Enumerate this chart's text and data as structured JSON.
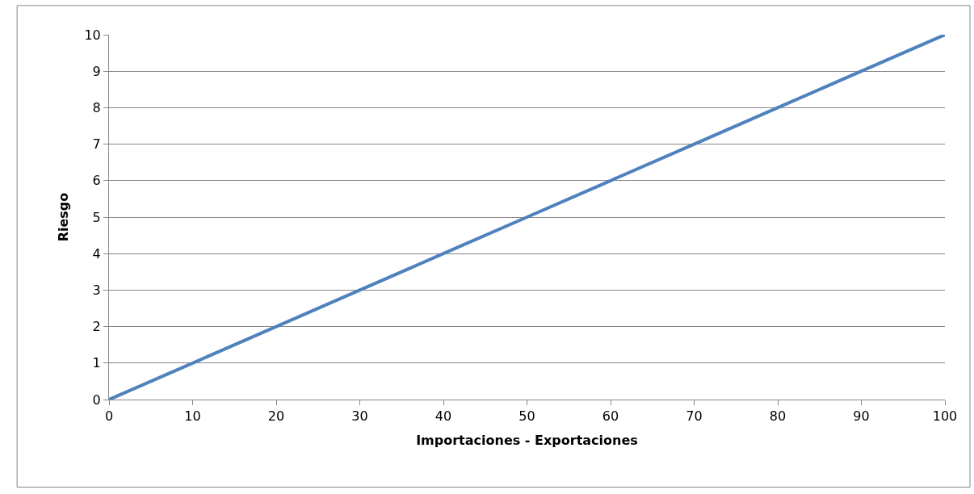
{
  "chart_data": {
    "type": "line",
    "xlabel": "Importaciones - Exportaciones",
    "ylabel": "Riesgo",
    "x": [
      0,
      10,
      20,
      30,
      40,
      50,
      60,
      70,
      80,
      90,
      100
    ],
    "series": [
      {
        "color": "#4f81bd",
        "values": [
          0,
          1,
          2,
          3,
          4,
          5,
          6,
          7,
          8,
          9,
          10
        ]
      }
    ],
    "xlim": [
      0,
      100
    ],
    "xticks": [
      0,
      10,
      20,
      30,
      40,
      50,
      60,
      70,
      80,
      90,
      100
    ],
    "ylim": [
      0,
      10
    ],
    "yticks": [
      0,
      1,
      2,
      3,
      4,
      5,
      6,
      7,
      8,
      9,
      10
    ],
    "grid": "y",
    "legend": false,
    "marker": "none",
    "line_style": "solid"
  }
}
